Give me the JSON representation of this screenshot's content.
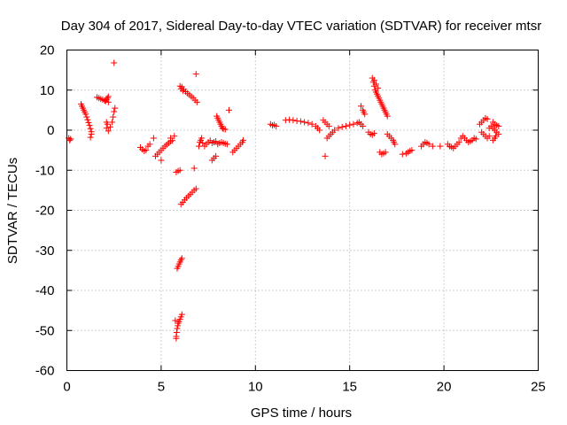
{
  "chart_data": {
    "type": "scatter",
    "title": "Day 304 of 2017, Sidereal Day-to-day VTEC variation (SDTVAR) for receiver mtsr",
    "xlabel": "GPS time / hours",
    "ylabel": "SDTVAR / TECUs",
    "xlim": [
      0,
      25
    ],
    "ylim": [
      -60,
      20
    ],
    "xticks": [
      0,
      5,
      10,
      15,
      20,
      25
    ],
    "yticks": [
      -60,
      -50,
      -40,
      -30,
      -20,
      -10,
      0,
      10,
      20
    ],
    "grid": true,
    "marker": "+",
    "color": "#ff0000",
    "series": [
      {
        "name": "SDTVAR",
        "points": [
          [
            0.1,
            -2.0
          ],
          [
            0.15,
            -2.5
          ],
          [
            0.2,
            -2.2
          ],
          [
            0.75,
            6.5
          ],
          [
            0.8,
            6.0
          ],
          [
            0.85,
            5.5
          ],
          [
            0.9,
            5.0
          ],
          [
            0.95,
            4.5
          ],
          [
            1.0,
            4.0
          ],
          [
            1.05,
            3.3
          ],
          [
            1.1,
            2.6
          ],
          [
            1.15,
            1.9
          ],
          [
            1.2,
            1.2
          ],
          [
            1.25,
            0.4
          ],
          [
            1.3,
            -0.4
          ],
          [
            1.3,
            -1.0
          ],
          [
            1.25,
            -1.8
          ],
          [
            1.6,
            8.2
          ],
          [
            1.7,
            8.0
          ],
          [
            1.8,
            7.8
          ],
          [
            1.9,
            7.6
          ],
          [
            2.0,
            7.4
          ],
          [
            2.05,
            7.2
          ],
          [
            2.1,
            7.6
          ],
          [
            2.15,
            8.0
          ],
          [
            2.2,
            8.4
          ],
          [
            2.2,
            7.0
          ],
          [
            2.1,
            2.0
          ],
          [
            2.15,
            1.5
          ],
          [
            2.1,
            0.5
          ],
          [
            2.2,
            -0.2
          ],
          [
            2.3,
            0.8
          ],
          [
            2.4,
            2.0
          ],
          [
            2.45,
            3.3
          ],
          [
            2.5,
            4.6
          ],
          [
            2.55,
            5.5
          ],
          [
            2.5,
            16.8
          ],
          [
            3.9,
            -4.3
          ],
          [
            4.0,
            -4.8
          ],
          [
            4.1,
            -5.2
          ],
          [
            4.2,
            -5.0
          ],
          [
            4.3,
            -4.0
          ],
          [
            4.4,
            -3.5
          ],
          [
            4.6,
            -2.0
          ],
          [
            4.7,
            -6.5
          ],
          [
            4.8,
            -6.0
          ],
          [
            4.9,
            -5.5
          ],
          [
            5.0,
            -5.0
          ],
          [
            5.1,
            -4.5
          ],
          [
            5.2,
            -4.0
          ],
          [
            5.3,
            -3.6
          ],
          [
            5.4,
            -3.2
          ],
          [
            5.5,
            -2.8
          ],
          [
            5.6,
            -2.6
          ],
          [
            5.0,
            -7.5
          ],
          [
            5.5,
            -2.0
          ],
          [
            5.7,
            -1.5
          ],
          [
            5.8,
            -10.5
          ],
          [
            5.9,
            -10.2
          ],
          [
            6.0,
            -10.0
          ],
          [
            5.85,
            -34.5
          ],
          [
            5.9,
            -34.0
          ],
          [
            5.95,
            -33.4
          ],
          [
            6.0,
            -32.9
          ],
          [
            6.05,
            -32.4
          ],
          [
            6.1,
            -32.0
          ],
          [
            5.75,
            -47.5
          ],
          [
            5.8,
            -51.5
          ],
          [
            5.82,
            -50.5
          ],
          [
            5.85,
            -49.5
          ],
          [
            5.88,
            -48.8
          ],
          [
            5.9,
            -48.2
          ],
          [
            5.95,
            -47.8
          ],
          [
            6.0,
            -47.2
          ],
          [
            6.05,
            -46.6
          ],
          [
            6.1,
            -46.0
          ],
          [
            5.8,
            -52.0
          ],
          [
            6.05,
            -18.5
          ],
          [
            6.15,
            -18.0
          ],
          [
            6.25,
            -17.4
          ],
          [
            6.35,
            -16.9
          ],
          [
            6.45,
            -16.4
          ],
          [
            6.55,
            -16.0
          ],
          [
            6.65,
            -15.5
          ],
          [
            6.75,
            -15.0
          ],
          [
            6.85,
            -14.6
          ],
          [
            6.0,
            11.0
          ],
          [
            6.05,
            10.3
          ],
          [
            6.1,
            10.8
          ],
          [
            6.15,
            9.8
          ],
          [
            6.2,
            10.2
          ],
          [
            6.3,
            9.6
          ],
          [
            6.4,
            9.2
          ],
          [
            6.5,
            8.8
          ],
          [
            6.6,
            8.4
          ],
          [
            6.7,
            8.0
          ],
          [
            6.8,
            7.5
          ],
          [
            6.9,
            7.0
          ],
          [
            6.85,
            14.0
          ],
          [
            6.75,
            -9.5
          ],
          [
            7.0,
            -4.0
          ],
          [
            7.05,
            -3.0
          ],
          [
            7.1,
            -2.5
          ],
          [
            7.15,
            -2.0
          ],
          [
            7.2,
            -3.2
          ],
          [
            7.3,
            -4.0
          ],
          [
            7.4,
            -3.5
          ],
          [
            7.5,
            -3.0
          ],
          [
            7.6,
            -2.6
          ],
          [
            7.7,
            -3.2
          ],
          [
            7.8,
            -3.0
          ],
          [
            7.9,
            -2.8
          ],
          [
            8.0,
            -3.5
          ],
          [
            8.1,
            -3.2
          ],
          [
            8.2,
            -3.0
          ],
          [
            8.3,
            -3.2
          ],
          [
            8.4,
            -3.4
          ],
          [
            8.5,
            -3.5
          ],
          [
            7.7,
            -7.5
          ],
          [
            7.8,
            -7.0
          ],
          [
            7.9,
            -6.5
          ],
          [
            7.95,
            3.5
          ],
          [
            8.0,
            3.0
          ],
          [
            8.05,
            2.5
          ],
          [
            8.1,
            2.0
          ],
          [
            8.15,
            1.5
          ],
          [
            8.2,
            1.0
          ],
          [
            8.25,
            0.5
          ],
          [
            8.3,
            0.3
          ],
          [
            8.4,
            0.2
          ],
          [
            8.6,
            5.0
          ],
          [
            8.8,
            -5.5
          ],
          [
            8.9,
            -5.0
          ],
          [
            9.0,
            -4.5
          ],
          [
            9.1,
            -4.0
          ],
          [
            9.2,
            -3.5
          ],
          [
            9.3,
            -3.0
          ],
          [
            9.35,
            -2.5
          ],
          [
            10.8,
            1.5
          ],
          [
            10.9,
            1.2
          ],
          [
            11.0,
            1.3
          ],
          [
            11.1,
            1.0
          ],
          [
            11.6,
            2.5
          ],
          [
            11.8,
            2.6
          ],
          [
            12.0,
            2.5
          ],
          [
            12.2,
            2.3
          ],
          [
            12.4,
            2.2
          ],
          [
            12.6,
            2.0
          ],
          [
            12.8,
            1.8
          ],
          [
            13.0,
            1.5
          ],
          [
            13.2,
            1.0
          ],
          [
            13.3,
            0.5
          ],
          [
            13.4,
            0.0
          ],
          [
            13.6,
            2.5
          ],
          [
            13.7,
            2.0
          ],
          [
            13.8,
            1.5
          ],
          [
            13.9,
            1.0
          ],
          [
            13.7,
            -6.5
          ],
          [
            13.8,
            -2.0
          ],
          [
            13.9,
            -1.5
          ],
          [
            14.0,
            -1.0
          ],
          [
            14.1,
            -0.5
          ],
          [
            14.2,
            0.0
          ],
          [
            14.4,
            0.5
          ],
          [
            14.6,
            0.8
          ],
          [
            14.8,
            1.0
          ],
          [
            15.0,
            1.3
          ],
          [
            15.2,
            1.5
          ],
          [
            15.4,
            1.8
          ],
          [
            15.5,
            2.0
          ],
          [
            15.6,
            1.5
          ],
          [
            15.7,
            1.0
          ],
          [
            15.6,
            6.0
          ],
          [
            15.7,
            5.0
          ],
          [
            15.75,
            4.5
          ],
          [
            15.8,
            4.0
          ],
          [
            16.0,
            -0.5
          ],
          [
            16.1,
            -1.0
          ],
          [
            16.2,
            -1.2
          ],
          [
            16.3,
            -0.8
          ],
          [
            16.2,
            13.0
          ],
          [
            16.25,
            12.0
          ],
          [
            16.3,
            11.0
          ],
          [
            16.35,
            10.0
          ],
          [
            16.4,
            9.5
          ],
          [
            16.45,
            9.0
          ],
          [
            16.5,
            8.5
          ],
          [
            16.55,
            8.0
          ],
          [
            16.6,
            7.5
          ],
          [
            16.65,
            7.0
          ],
          [
            16.7,
            6.5
          ],
          [
            16.75,
            6.0
          ],
          [
            16.8,
            5.5
          ],
          [
            16.85,
            5.0
          ],
          [
            16.9,
            4.5
          ],
          [
            16.95,
            4.0
          ],
          [
            17.0,
            3.5
          ],
          [
            16.3,
            12.5
          ],
          [
            16.4,
            11.5
          ],
          [
            16.5,
            10.5
          ],
          [
            16.6,
            -5.5
          ],
          [
            16.7,
            -6.0
          ],
          [
            16.8,
            -5.8
          ],
          [
            16.9,
            -5.5
          ],
          [
            17.0,
            -1.0
          ],
          [
            17.1,
            -1.5
          ],
          [
            17.2,
            -2.0
          ],
          [
            17.3,
            -2.5
          ],
          [
            17.35,
            -3.0
          ],
          [
            17.4,
            -3.5
          ],
          [
            17.8,
            -6.0
          ],
          [
            18.0,
            -5.8
          ],
          [
            18.1,
            -5.5
          ],
          [
            18.2,
            -5.2
          ],
          [
            18.3,
            -5.0
          ],
          [
            18.8,
            -4.0
          ],
          [
            18.9,
            -3.5
          ],
          [
            19.0,
            -3.0
          ],
          [
            19.1,
            -3.2
          ],
          [
            19.2,
            -3.5
          ],
          [
            19.4,
            -4.0
          ],
          [
            19.8,
            -4.0
          ],
          [
            20.2,
            -3.5
          ],
          [
            20.3,
            -4.0
          ],
          [
            20.4,
            -4.2
          ],
          [
            20.5,
            -4.5
          ],
          [
            20.6,
            -4.0
          ],
          [
            20.7,
            -3.5
          ],
          [
            20.8,
            -3.0
          ],
          [
            20.9,
            -2.0
          ],
          [
            21.0,
            -1.5
          ],
          [
            21.1,
            -2.0
          ],
          [
            21.2,
            -2.5
          ],
          [
            21.3,
            -3.0
          ],
          [
            21.4,
            -2.8
          ],
          [
            21.5,
            -2.5
          ],
          [
            21.6,
            -2.0
          ],
          [
            21.7,
            -2.2
          ],
          [
            21.9,
            1.5
          ],
          [
            22.0,
            2.0
          ],
          [
            22.1,
            2.5
          ],
          [
            22.2,
            3.0
          ],
          [
            22.3,
            2.8
          ],
          [
            22.0,
            -0.5
          ],
          [
            22.1,
            -1.0
          ],
          [
            22.2,
            -1.5
          ],
          [
            22.3,
            -2.0
          ],
          [
            22.4,
            -1.5
          ],
          [
            22.4,
            0.5
          ],
          [
            22.5,
            1.0
          ],
          [
            22.6,
            0.5
          ],
          [
            22.7,
            0.0
          ],
          [
            22.8,
            -0.5
          ],
          [
            22.9,
            -1.0
          ],
          [
            22.6,
            -2.5
          ],
          [
            22.7,
            -2.0
          ],
          [
            22.75,
            -1.5
          ],
          [
            22.6,
            2.0
          ],
          [
            22.7,
            1.5
          ],
          [
            22.8,
            1.2
          ],
          [
            22.9,
            1.0
          ]
        ]
      }
    ]
  }
}
